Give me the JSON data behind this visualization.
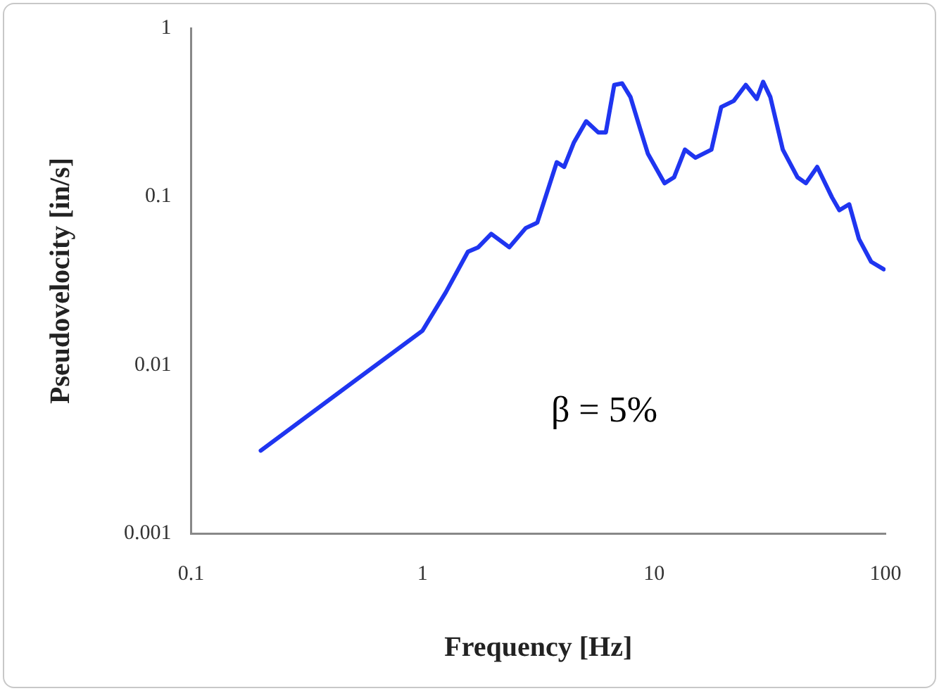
{
  "chart_data": {
    "type": "line",
    "xlabel": "Frequency [Hz]",
    "ylabel": "Pseudovelocity [in/s]",
    "log": "xy",
    "grid": false,
    "legend": false,
    "marker": "none",
    "line_style": "solid",
    "xlim": [
      0.1,
      100
    ],
    "xticks": [
      0.1,
      1,
      10,
      100
    ],
    "ylim": [
      0.001,
      1
    ],
    "yticks": [
      0.001,
      0.01,
      0.1,
      1
    ],
    "annotations": [
      "β = 5%"
    ],
    "series": [
      {
        "color": "#1f35f0",
        "x": [
          0.2,
          1,
          1.26,
          1.57,
          1.74,
          1.98,
          2.37,
          2.79,
          3.13,
          3.8,
          4.09,
          4.51,
          5.09,
          5.75,
          6.19,
          6.73,
          7.28,
          7.91,
          8.73,
          9.4,
          11.1,
          12.2,
          13.6,
          15.1,
          17.7,
          19.5,
          22.1,
          24.9,
          27.8,
          29.6,
          31.8,
          36,
          41.7,
          45.3,
          50.7,
          58.7,
          63.2,
          69.7,
          76.8,
          86.7,
          98.2
        ],
        "values": [
          0.0031,
          0.016,
          0.027,
          0.047,
          0.05,
          0.06,
          0.05,
          0.065,
          0.07,
          0.16,
          0.15,
          0.21,
          0.28,
          0.24,
          0.24,
          0.46,
          0.47,
          0.39,
          0.25,
          0.18,
          0.12,
          0.13,
          0.19,
          0.17,
          0.19,
          0.34,
          0.37,
          0.46,
          0.38,
          0.48,
          0.39,
          0.19,
          0.13,
          0.12,
          0.15,
          0.099,
          0.083,
          0.09,
          0.056,
          0.041,
          0.037
        ]
      }
    ]
  }
}
